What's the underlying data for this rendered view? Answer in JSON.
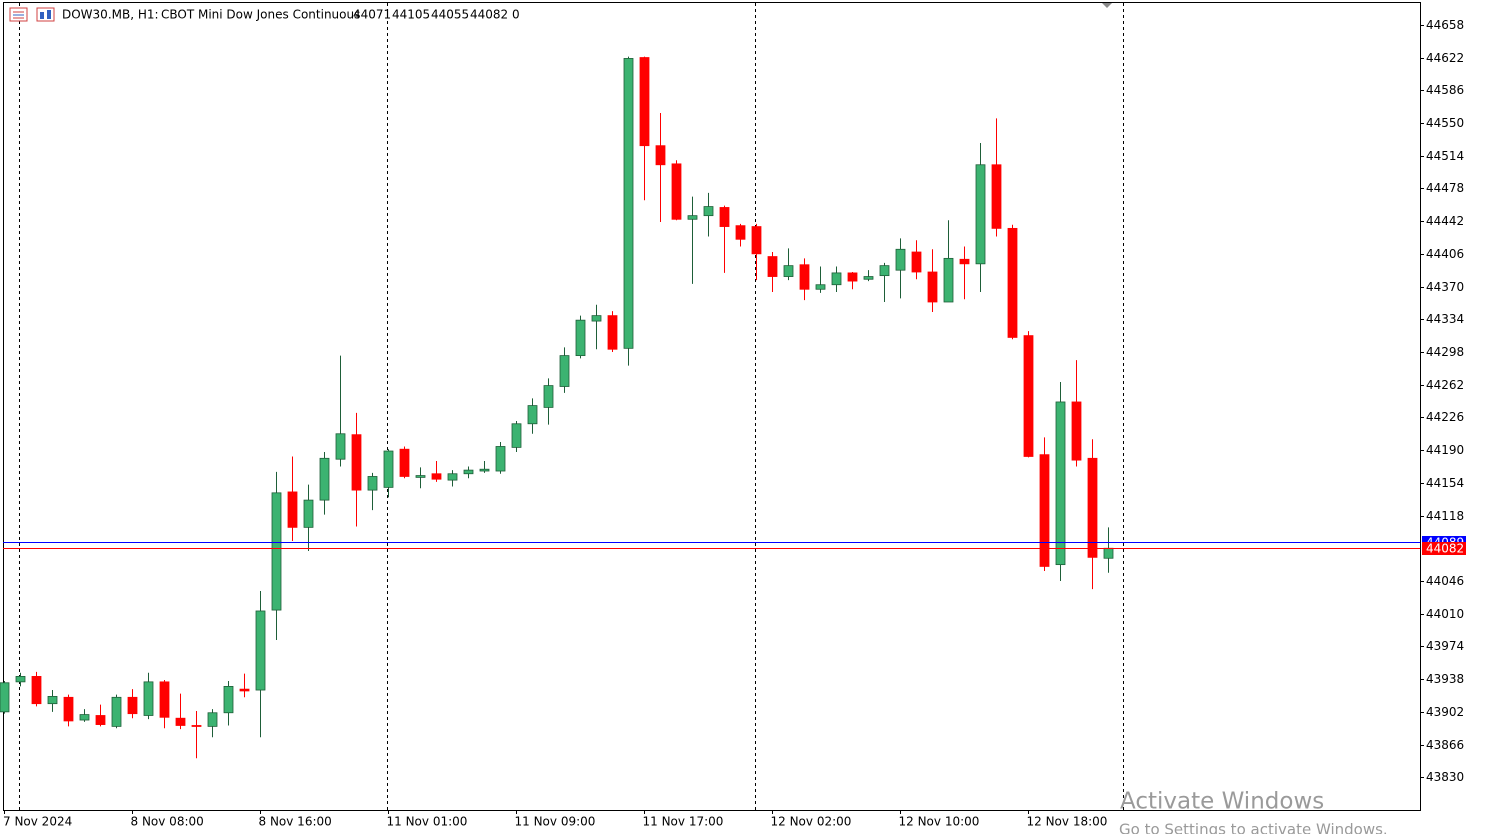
{
  "chart_data": {
    "type": "candlestick",
    "title": "DOW30.MB, H1:",
    "subtitle": "CBOT Mini Dow Jones Continuous",
    "header_extra": 0,
    "categories": [
      "7 Nov 2024",
      null,
      null,
      null,
      null,
      null,
      null,
      null,
      "8 Nov 08:00",
      null,
      null,
      null,
      null,
      null,
      null,
      null,
      "8 Nov 16:00",
      null,
      null,
      null,
      null,
      null,
      null,
      null,
      "11 Nov 01:00",
      null,
      null,
      null,
      null,
      null,
      null,
      null,
      "11 Nov 09:00",
      null,
      null,
      null,
      null,
      null,
      null,
      null,
      "11 Nov 17:00",
      null,
      null,
      null,
      null,
      null,
      null,
      null,
      "12 Nov 02:00",
      null,
      null,
      null,
      null,
      null,
      null,
      null,
      "12 Nov 10:00",
      null,
      null,
      null,
      null,
      null,
      null,
      null,
      "12 Nov 18:00",
      null,
      null,
      null,
      null,
      null
    ],
    "open": [
      43902,
      43935,
      43941,
      43911,
      43918,
      43893,
      43898,
      43886,
      43918,
      43898,
      43935,
      43895,
      43887,
      43886,
      43901,
      43927,
      43926,
      44014,
      44144,
      44105,
      44135,
      44180,
      44207,
      44146,
      44149,
      44191,
      44160,
      44164,
      44157,
      44164,
      44167,
      44167,
      44193,
      44219,
      44237,
      44260,
      44294,
      44332,
      44338,
      44302,
      44622,
      44525,
      44505,
      44444,
      44448,
      44457,
      44437,
      44436,
      44403,
      44381,
      44394,
      44367,
      44372,
      44385,
      44378,
      44382,
      44388,
      44408,
      44386,
      44353,
      44400,
      44395,
      44504,
      44434,
      44316,
      44185,
      44064,
      44243,
      44181,
      44071
    ],
    "high": [
      43936,
      43945,
      43946,
      43926,
      43921,
      43905,
      43910,
      43921,
      43927,
      43945,
      43937,
      43922,
      43903,
      43905,
      43936,
      43944,
      44035,
      44166,
      44183,
      44152,
      44188,
      44294,
      44231,
      44165,
      44191,
      44194,
      44171,
      44178,
      44168,
      44172,
      44178,
      44199,
      44222,
      44247,
      44269,
      44303,
      44338,
      44350,
      44343,
      44623,
      44623,
      44561,
      44509,
      44469,
      44473,
      44459,
      44439,
      44439,
      44408,
      44412,
      44401,
      44392,
      44392,
      44386,
      44388,
      44396,
      44423,
      44421,
      44411,
      44443,
      44414,
      44528,
      44555,
      44438,
      44321,
      44204,
      44265,
      44289,
      44202,
      44105
    ],
    "low": [
      43900,
      43930,
      43908,
      43902,
      43886,
      43891,
      43886,
      43884,
      43895,
      43894,
      43884,
      43883,
      43851,
      43874,
      43887,
      43918,
      43874,
      43981,
      44090,
      44079,
      44119,
      44172,
      44106,
      44124,
      44138,
      44159,
      44148,
      44155,
      44150,
      44159,
      44165,
      44164,
      44188,
      44208,
      44218,
      44253,
      44291,
      44301,
      44298,
      44283,
      44465,
      44441,
      44443,
      44373,
      44425,
      44385,
      44414,
      44377,
      44364,
      44377,
      44355,
      44363,
      44364,
      44367,
      44376,
      44353,
      44357,
      44378,
      44342,
      44353,
      44356,
      44364,
      44425,
      44312,
      44182,
      44057,
      44046,
      44172,
      44037,
      44055
    ],
    "close": [
      43934,
      43941,
      43911,
      43919,
      43892,
      43899,
      43888,
      43918,
      43900,
      43935,
      43896,
      43887,
      43886,
      43901,
      43930,
      43925,
      44013,
      44143,
      44105,
      44135,
      44181,
      44208,
      44146,
      44161,
      44189,
      44161,
      44162,
      44158,
      44164,
      44168,
      44169,
      44194,
      44219,
      44239,
      44261,
      44294,
      44333,
      44338,
      44301,
      44621,
      44525,
      44504,
      44444,
      44448,
      44458,
      44436,
      44422,
      44406,
      44381,
      44393,
      44367,
      44372,
      44385,
      44376,
      44381,
      44393,
      44411,
      44386,
      44353,
      44401,
      44395,
      44504,
      44434,
      44314,
      44183,
      44062,
      44243,
      44179,
      44072,
      44082
    ],
    "up_color": "#3cb371",
    "down_color": "#ff0000",
    "bid": 44082,
    "bid_color": "#ff0000",
    "ask": 44089,
    "ask_color": "#0000ff",
    "ylim": [
      43794,
      44682
    ],
    "yticks": [
      43830,
      43866,
      43902,
      43938,
      43974,
      44010,
      44046,
      44118,
      44154,
      44190,
      44226,
      44262,
      44298,
      44334,
      44370,
      44406,
      44442,
      44478,
      44514,
      44550,
      44586,
      44622,
      44658
    ],
    "grid": false
  },
  "watermark": {
    "line1": "Activate Windows",
    "line2": "Go to Settings to activate Windows."
  }
}
